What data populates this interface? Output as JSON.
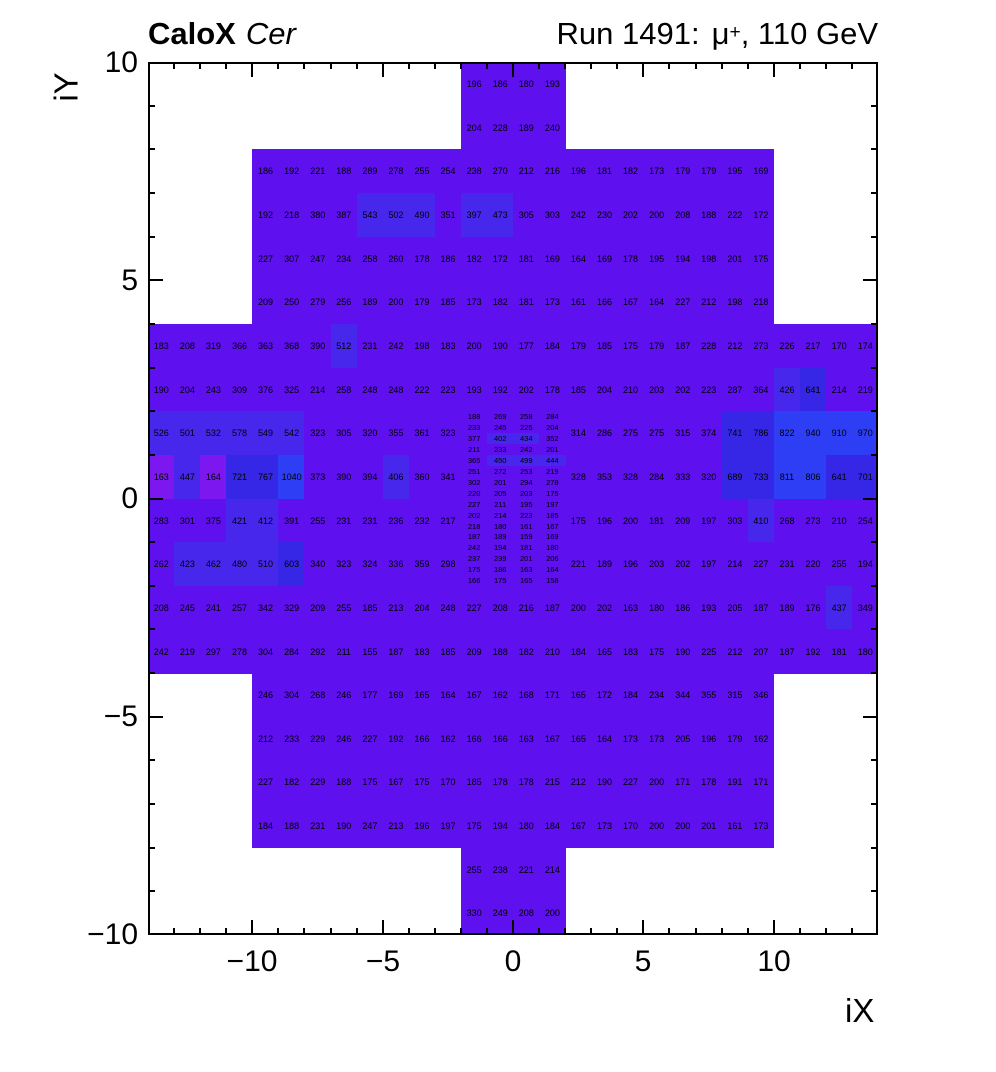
{
  "header": {
    "title_left_bold": "CaloX",
    "title_left_italic": "Cer",
    "title_right_prefix": "Run 1491:",
    "title_right_mu": "μ",
    "title_right_sup": "+",
    "title_right_suffix": ", 110 GeV"
  },
  "axes": {
    "x_label": "iX",
    "y_label": "iY",
    "x_tick_labels": [
      "−10",
      "−5",
      "0",
      "5",
      "10"
    ],
    "x_tick_values": [
      -10,
      -5,
      0,
      5,
      10
    ],
    "y_tick_labels": [
      "10",
      "5",
      "0",
      "−5",
      "−10"
    ],
    "y_tick_values": [
      10,
      5,
      0,
      -5,
      -10
    ]
  },
  "chart_data": {
    "type": "heatmap",
    "title": "CaloX Cer  Run 1491: μ+, 110 GeV",
    "xlabel": "iX",
    "ylabel": "iY",
    "xlim": [
      -14,
      14
    ],
    "ylim": [
      -10,
      10
    ],
    "grid": false,
    "legend": "none",
    "palette": {
      "A": "#7d17f0",
      "B": "#5e10ee",
      "C": "#4827ec",
      "D": "#3626e6",
      "E": "#2d3ef5"
    },
    "bands": [
      {
        "y": [
          9,
          10
        ],
        "x0": -2,
        "v": [
          196,
          186,
          180,
          193
        ],
        "c": "BBBB"
      },
      {
        "y": [
          8,
          9
        ],
        "x0": -2,
        "v": [
          204,
          228,
          189,
          240
        ],
        "c": "BBBB"
      },
      {
        "y": [
          7,
          8
        ],
        "x0": -10,
        "v": [
          186,
          192,
          221,
          188,
          289,
          278,
          255,
          254,
          238,
          270,
          212,
          216,
          196,
          181,
          182,
          173,
          179,
          179,
          195,
          169
        ],
        "c": "BBBBBBBBBBBBBBBBBBBB"
      },
      {
        "y": [
          6,
          7
        ],
        "x0": -10,
        "v": [
          192,
          218,
          380,
          387,
          543,
          502,
          490,
          351,
          397,
          473,
          305,
          303,
          242,
          230,
          202,
          200,
          208,
          188,
          222,
          172
        ],
        "c": "BBBBCCCBCCBBBBBBBBBB"
      },
      {
        "y": [
          5,
          6
        ],
        "x0": -10,
        "v": [
          227,
          307,
          247,
          234,
          258,
          260,
          178,
          186,
          182,
          172,
          181,
          169,
          164,
          169,
          178,
          195,
          194,
          198,
          201,
          175
        ],
        "c": "BBBBBBBBBBBBBBBBBBBB"
      },
      {
        "y": [
          4,
          5
        ],
        "x0": -10,
        "v": [
          209,
          250,
          279,
          256,
          189,
          200,
          179,
          185,
          173,
          182,
          181,
          173,
          161,
          166,
          167,
          164,
          227,
          212,
          198,
          218
        ],
        "c": "BBBBBBBBBBBBBBBBBBBB"
      },
      {
        "y": [
          3,
          4
        ],
        "x0": -14,
        "v": [
          183,
          208,
          319,
          366,
          363,
          368,
          390,
          512,
          231,
          242,
          198,
          183,
          200,
          190,
          177,
          184,
          179,
          185,
          175,
          179,
          187,
          228,
          212,
          273,
          226,
          217,
          170,
          174
        ],
        "c": "BBBBBBBCBBBBBBBBBBBBBBBBBBBB"
      },
      {
        "y": [
          2,
          3
        ],
        "x0": -14,
        "v": [
          190,
          204,
          243,
          309,
          376,
          325,
          214,
          258,
          248,
          248,
          222,
          223,
          193,
          192,
          202,
          178,
          185,
          204,
          210,
          203,
          202,
          223,
          287,
          364,
          426,
          641,
          214,
          219
        ],
        "c": "BBBBBBBBBBBBBBBBBBBBBBBBCDBB"
      },
      {
        "y": [
          1,
          2
        ],
        "x0": -14,
        "v": [
          526,
          501,
          532,
          578,
          549,
          542,
          323,
          305,
          320,
          355,
          361,
          323
        ],
        "c": "CCCCCCBBBBBB"
      },
      {
        "y": [
          1,
          2
        ],
        "x0": 2,
        "v": [
          314,
          286,
          275,
          275,
          315,
          374,
          741,
          786,
          822,
          940,
          910,
          970
        ],
        "c": "BBBBBBDDEEEE"
      },
      {
        "y": [
          0,
          1
        ],
        "x0": -14,
        "v": [
          163,
          447,
          164,
          721,
          767,
          1040,
          373,
          390,
          394,
          406,
          360,
          341
        ],
        "c": "ACADDEBBBCBB"
      },
      {
        "y": [
          0,
          1
        ],
        "x0": 2,
        "v": [
          328,
          353,
          328,
          284,
          333,
          320,
          689,
          733,
          811,
          806,
          641,
          701
        ],
        "c": "BBBBBBDDEEDD"
      },
      {
        "y": [
          -1,
          0
        ],
        "x0": -14,
        "v": [
          283,
          301,
          375,
          421,
          412,
          391,
          255,
          231,
          231,
          236,
          232,
          217
        ],
        "c": "BBBCCBBBBBBB"
      },
      {
        "y": [
          -1,
          0
        ],
        "x0": 2,
        "v": [
          175,
          196,
          200,
          181,
          209,
          197,
          303,
          410,
          268,
          273,
          210,
          254
        ],
        "c": "BBBBBBBCBBBB"
      },
      {
        "y": [
          -2,
          -1
        ],
        "x0": -14,
        "v": [
          262,
          423,
          462,
          480,
          510,
          603,
          340,
          323,
          324,
          336,
          359,
          298
        ],
        "c": "BCCCCDBBBBBB"
      },
      {
        "y": [
          -2,
          -1
        ],
        "x0": 2,
        "v": [
          221,
          189,
          196,
          203,
          202,
          197,
          214,
          227,
          231,
          220,
          255,
          194
        ],
        "c": "BBBBBBBBBBBB"
      },
      {
        "y": [
          -3,
          -2
        ],
        "x0": -14,
        "v": [
          208,
          245,
          241,
          257,
          342,
          329,
          209,
          255,
          185,
          213,
          204,
          248,
          227,
          208,
          216,
          187,
          200,
          202,
          163,
          180,
          186,
          193,
          205,
          187,
          189,
          176,
          437,
          349
        ],
        "c": "BBBBBBBBBBBBBBBBBBBBBBBBBBCB"
      },
      {
        "y": [
          -4,
          -3
        ],
        "x0": -14,
        "v": [
          242,
          219,
          297,
          278,
          304,
          284,
          292,
          211,
          155,
          187,
          183,
          185,
          209,
          188,
          182,
          210,
          184,
          165,
          183,
          175,
          190,
          225,
          212,
          207,
          187,
          192,
          181,
          180
        ],
        "c": "BBBBBBBBBBBBBBBBBBBBBBBBBBBB"
      },
      {
        "y": [
          -5,
          -4
        ],
        "x0": -10,
        "v": [
          246,
          304,
          268,
          246,
          177,
          169,
          165,
          164,
          167,
          162,
          168,
          171,
          165,
          172,
          184,
          234,
          344,
          355,
          315,
          346
        ],
        "c": "BBBBBBBBBBBBBBBBBBBB"
      },
      {
        "y": [
          -6,
          -5
        ],
        "x0": -10,
        "v": [
          212,
          233,
          229,
          246,
          227,
          192,
          166,
          162,
          166,
          166,
          163,
          167,
          165,
          164,
          173,
          173,
          205,
          196,
          179,
          162
        ],
        "c": "BBBBBBBBBBBBBBBBBBBB"
      },
      {
        "y": [
          -7,
          -6
        ],
        "x0": -10,
        "v": [
          227,
          182,
          229,
          188,
          175,
          167,
          175,
          170,
          185,
          178,
          178,
          215,
          212,
          190,
          227,
          200,
          171,
          178,
          191,
          171
        ],
        "c": "BBBBBBBBBBBBBBBBBBBB"
      },
      {
        "y": [
          -8,
          -7
        ],
        "x0": -10,
        "v": [
          184,
          188,
          231,
          190,
          247,
          213,
          196,
          197,
          175,
          194,
          180,
          184,
          167,
          173,
          170,
          200,
          200,
          201,
          161,
          173
        ],
        "c": "BBBBBBBBBBBBBBBBBBBB"
      },
      {
        "y": [
          -9,
          -8
        ],
        "x0": -2,
        "v": [
          255,
          238,
          221,
          214
        ],
        "c": "BBBB"
      },
      {
        "y": [
          -10,
          -9
        ],
        "x0": -2,
        "v": [
          330,
          249,
          208,
          200
        ],
        "c": "BBBB"
      }
    ],
    "fine_block": {
      "x0": -2,
      "y_top": 2,
      "cell_w": 1,
      "cell_h": 0.25,
      "rows": [
        {
          "v": [
            188,
            269,
            258,
            284
          ],
          "c": "BBBB"
        },
        {
          "v": [
            233,
            245,
            225,
            204
          ],
          "c": "BBBB"
        },
        {
          "v": [
            377,
            402,
            434,
            352
          ],
          "c": "BCCB"
        },
        {
          "v": [
            211,
            233,
            242,
            201
          ],
          "c": "BBBB"
        },
        {
          "v": [
            365,
            450,
            499,
            444
          ],
          "c": "BCCC"
        },
        {
          "v": [
            251,
            272,
            253,
            219
          ],
          "c": "BBBB"
        },
        {
          "v": [
            302,
            201,
            294,
            278
          ],
          "c": "BBBB"
        },
        {
          "v": [
            220,
            205,
            203,
            175
          ],
          "c": "BBBB"
        },
        {
          "v": [
            227,
            211,
            195,
            197
          ],
          "c": "BBBB"
        },
        {
          "v": [
            202,
            214,
            223,
            185
          ],
          "c": "BBBB"
        },
        {
          "v": [
            218,
            180,
            161,
            167
          ],
          "c": "BBBB"
        },
        {
          "v": [
            187,
            189,
            159,
            169
          ],
          "c": "BBBB"
        },
        {
          "v": [
            242,
            194,
            181,
            180
          ],
          "c": "BBBB"
        },
        {
          "v": [
            237,
            239,
            201,
            206
          ],
          "c": "BBBB"
        },
        {
          "v": [
            175,
            186,
            163,
            164
          ],
          "c": "BBBB"
        },
        {
          "v": [
            166,
            175,
            165,
            158
          ],
          "c": "BBBB"
        }
      ]
    }
  }
}
